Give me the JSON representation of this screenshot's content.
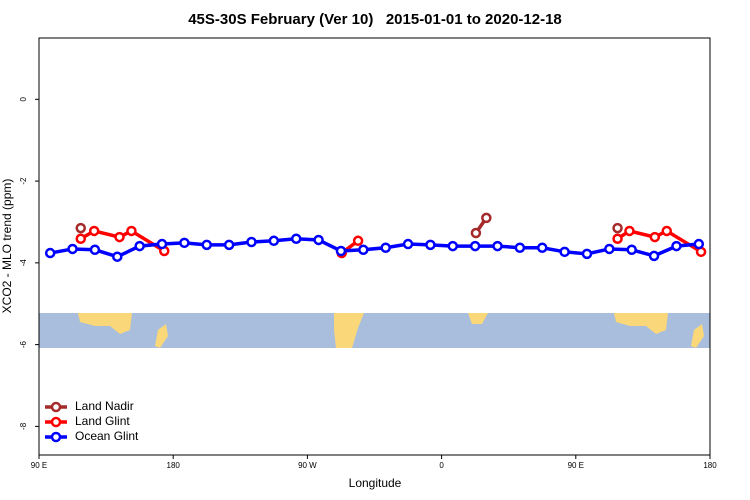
{
  "chart_data": {
    "type": "line",
    "title": "45S-30S February (Ver 10)   2015-01-01 to 2020-12-18",
    "x_label": "Longitude",
    "y_label": "XCO2 - MLO trend (ppm)",
    "xlim": [
      90,
      540
    ],
    "ylim": [
      1.5,
      -8.7
    ],
    "xticks": [
      {
        "value": 90,
        "label": "90 E"
      },
      180,
      {
        "value": 270,
        "label": "90 W"
      },
      {
        "value": 360,
        "label": "0"
      },
      {
        "value": 450,
        "label": "90 E"
      },
      {
        "value": 540,
        "label": "180"
      }
    ],
    "yticks": [
      0,
      -2,
      -4,
      -6,
      -8
    ],
    "legend": "bottom-left",
    "series": [
      {
        "name": "Land Nadir",
        "color": "#a52a2a",
        "x": [
          118,
          null,
          383,
          390,
          null,
          478
        ],
        "values": [
          -3.15,
          null,
          -3.27,
          -2.9,
          null,
          -3.15
        ]
      },
      {
        "name": "Land Glint",
        "color": "#ff0000",
        "x": [
          118,
          127,
          144,
          152,
          174,
          null,
          293,
          304,
          null,
          478,
          486,
          503,
          511,
          534
        ],
        "values": [
          -3.41,
          -3.22,
          -3.37,
          -3.22,
          -3.71,
          null,
          -3.76,
          -3.46,
          null,
          -3.41,
          -3.22,
          -3.37,
          -3.22,
          -3.73
        ]
      },
      {
        "name": "Ocean Glint",
        "color": "#0000ff",
        "x": [
          97.5,
          112.5,
          127.5,
          142.5,
          157.5,
          172.5,
          187.5,
          202.5,
          217.5,
          232.5,
          247.5,
          262.5,
          277.5,
          292.5,
          307.5,
          322.5,
          337.5,
          352.5,
          367.5,
          382.5,
          397.5,
          412.5,
          427.5,
          442.5,
          457.5,
          472.5,
          487.5,
          502.5,
          517.5,
          532.5
        ],
        "values": [
          -3.76,
          -3.66,
          -3.68,
          -3.85,
          -3.59,
          -3.54,
          -3.51,
          -3.56,
          -3.56,
          -3.49,
          -3.46,
          -3.41,
          -3.44,
          -3.71,
          -3.68,
          -3.63,
          -3.54,
          -3.56,
          -3.59,
          -3.59,
          -3.59,
          -3.63,
          -3.63,
          -3.73,
          -3.78,
          -3.66,
          -3.68,
          -3.83,
          -3.59,
          -3.54
        ]
      }
    ]
  }
}
